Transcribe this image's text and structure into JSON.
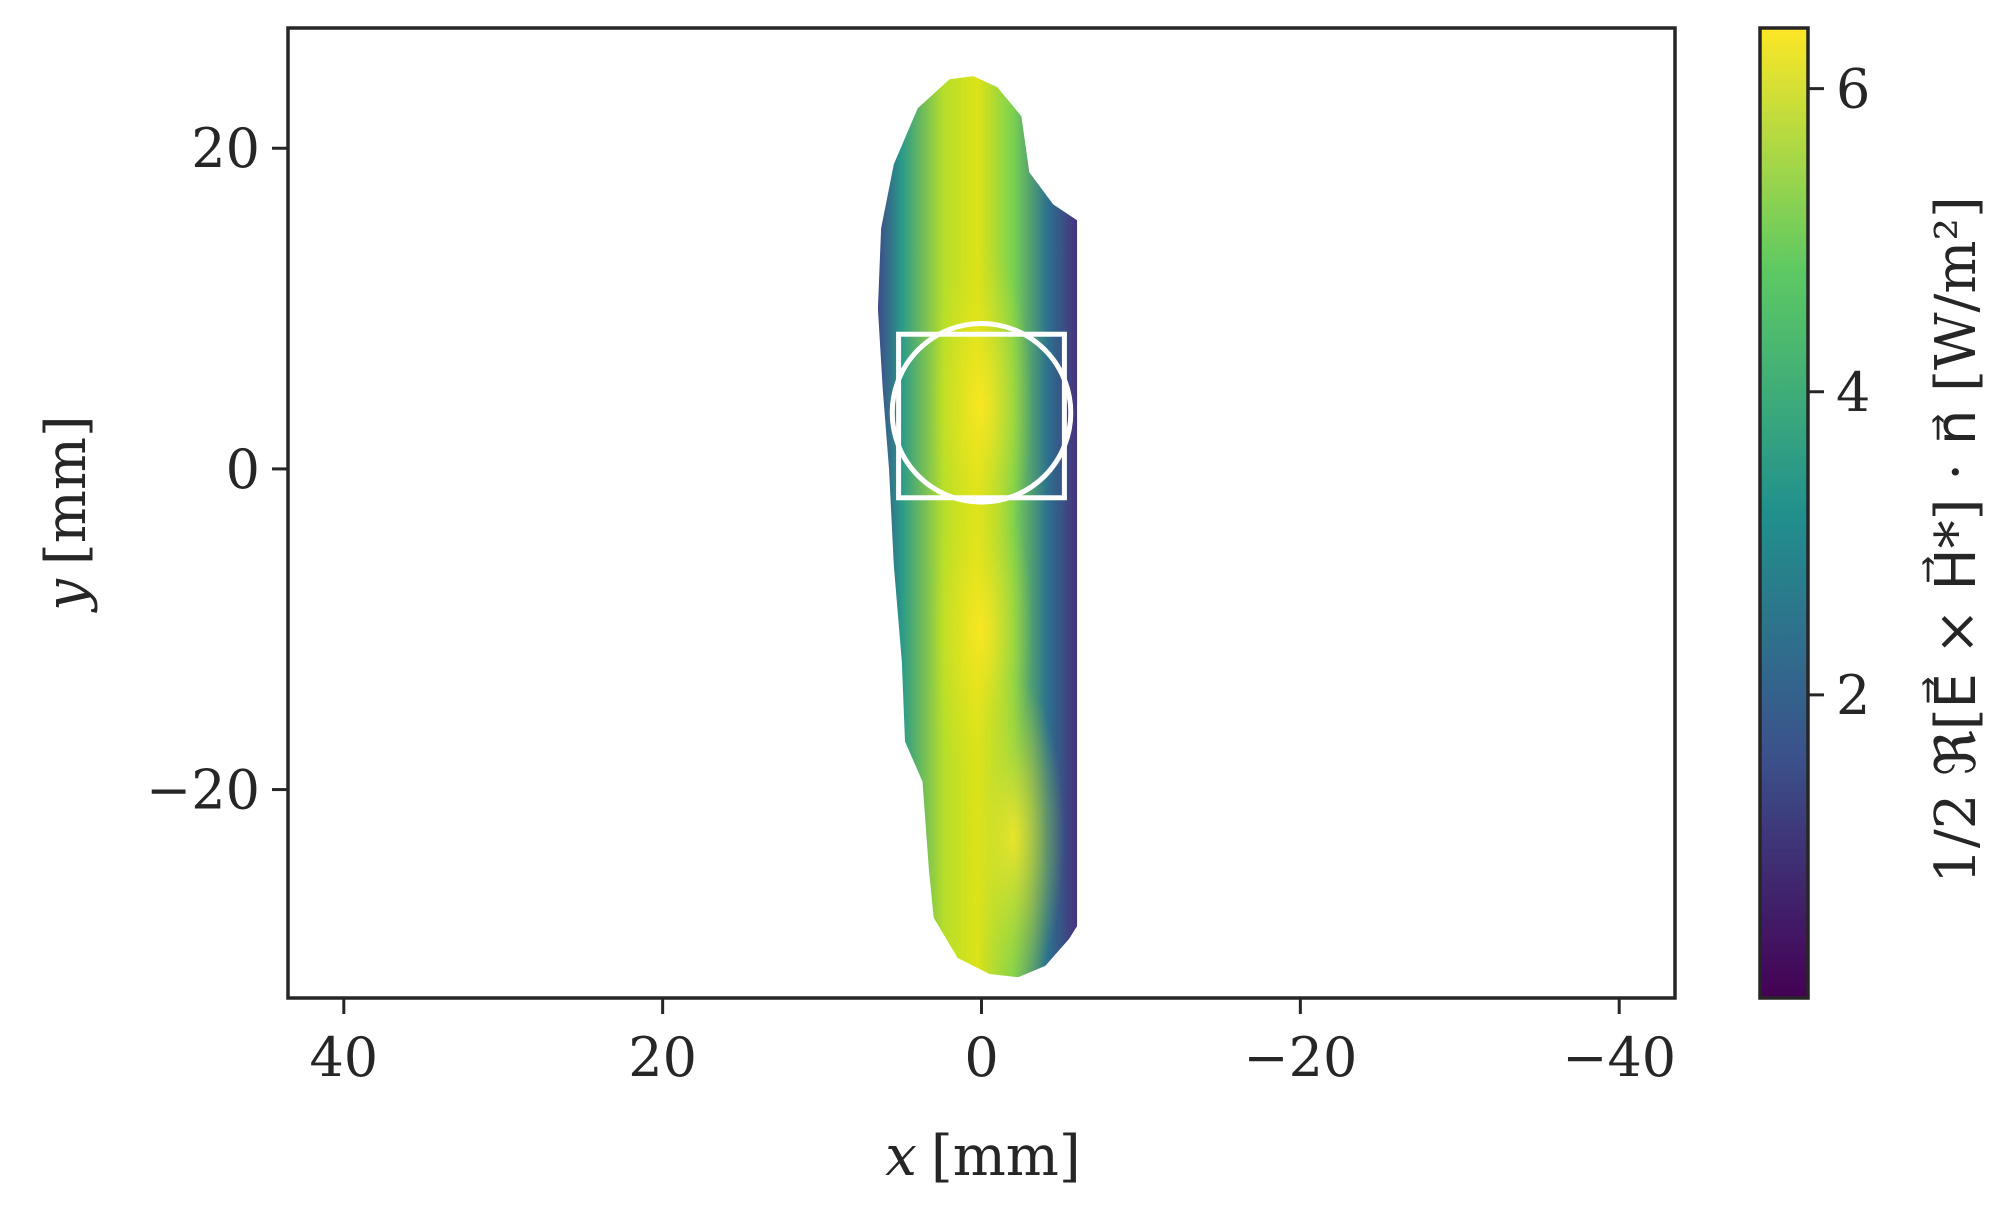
{
  "chart_data": {
    "type": "heatmap",
    "title": "",
    "xlabel_var": "x",
    "xlabel_unit": "[mm]",
    "ylabel_var": "y",
    "ylabel_unit": "[mm]",
    "colorbar_label": "1/2 ℜ[E⃗ × H⃗*] · n⃗ [W/m²]",
    "x_axis": {
      "lim": [
        43.5,
        -43.5
      ],
      "inverted": true,
      "ticks": [
        40,
        20,
        0,
        -20,
        -40
      ],
      "tick_labels": [
        "40",
        "20",
        "0",
        "−20",
        "−40"
      ]
    },
    "y_axis": {
      "lim": [
        -33,
        27.5
      ],
      "ticks": [
        20,
        0,
        -20
      ],
      "tick_labels": [
        "20",
        "0",
        "−20"
      ]
    },
    "colorbar": {
      "colormap": "viridis",
      "range": [
        0,
        6.4
      ],
      "ticks": [
        2,
        4,
        6
      ],
      "tick_labels": [
        "2",
        "4",
        "6"
      ],
      "stops": [
        "#440154",
        "#3b528b",
        "#21908d",
        "#5dc963",
        "#fde725"
      ]
    },
    "field_region": {
      "outline_mm": [
        [
          -6,
          15.5
        ],
        [
          -4.5,
          16.5
        ],
        [
          -3,
          18.5
        ],
        [
          -2.5,
          22
        ],
        [
          -1,
          23.8
        ],
        [
          0.5,
          24.5
        ],
        [
          2,
          24.3
        ],
        [
          4,
          22.5
        ],
        [
          5.5,
          19
        ],
        [
          6.3,
          15
        ],
        [
          6.5,
          10
        ],
        [
          6.2,
          5
        ],
        [
          5.8,
          0
        ],
        [
          5.5,
          -6
        ],
        [
          5,
          -12
        ],
        [
          4.8,
          -17
        ],
        [
          3.7,
          -19.5
        ],
        [
          3.3,
          -25
        ],
        [
          3,
          -28
        ],
        [
          1.5,
          -30.5
        ],
        [
          -0.5,
          -31.5
        ],
        [
          -2.3,
          -31.7
        ],
        [
          -4,
          -31
        ],
        [
          -5.5,
          -29.3
        ],
        [
          -6,
          -28.5
        ],
        [
          -6,
          -20
        ],
        [
          -6,
          -10
        ],
        [
          -6,
          0
        ],
        [
          -6,
          10
        ]
      ],
      "ridge_x_mm": 1,
      "peak_value": 6.4,
      "hot_spots_mm": [
        [
          0,
          4
        ],
        [
          0,
          -10
        ],
        [
          -2,
          -23
        ]
      ]
    },
    "overlays": {
      "circle": {
        "center_mm": [
          0,
          3.5
        ],
        "radius_mm": 5.6,
        "color": "#ffffff"
      },
      "square": {
        "center_mm": [
          0,
          3.3
        ],
        "half_width_mm": 5.2,
        "half_height_mm": 5.1,
        "color": "#ffffff"
      }
    }
  }
}
